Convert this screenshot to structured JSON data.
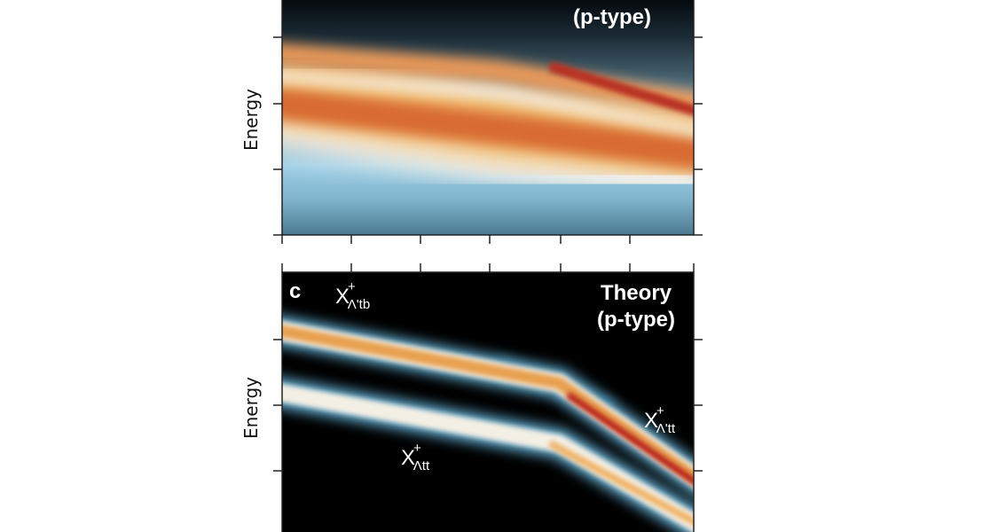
{
  "panels": [
    {
      "y_label": "Energy",
      "title_lines": [
        "(p-type)"
      ]
    },
    {
      "label": "c",
      "y_label": "Energy",
      "title_lines": [
        "Theory",
        "(p-type)"
      ],
      "annotations": [
        {
          "base": "X",
          "sup": "+",
          "sub": "Λ'tb"
        },
        {
          "base": "X",
          "sup": "+",
          "sub": "Λ'tt"
        },
        {
          "base": "X",
          "sup": "+",
          "sub": "Λtt"
        }
      ]
    }
  ]
}
